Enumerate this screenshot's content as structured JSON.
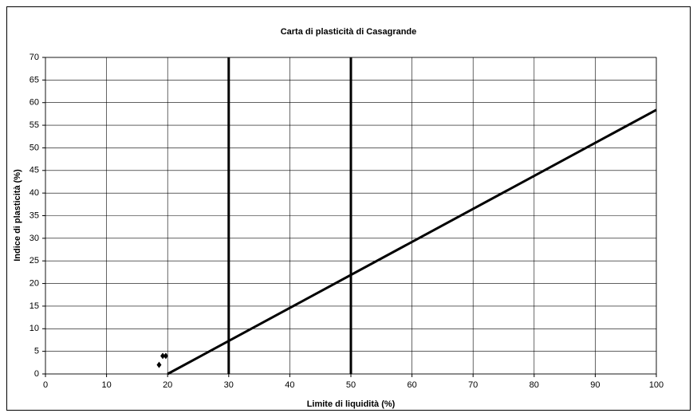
{
  "chart_data": {
    "type": "scatter",
    "title": "Carta di plasticità di Casagrande",
    "x_label": "Limite di liquidità (%)",
    "y_label": "Indice di plasticità (%)",
    "xlim": [
      0,
      100
    ],
    "ylim": [
      0,
      70
    ],
    "xticks": [
      0,
      10,
      20,
      30,
      40,
      50,
      60,
      70,
      80,
      90,
      100
    ],
    "yticks": [
      0,
      5,
      10,
      15,
      20,
      25,
      30,
      35,
      40,
      45,
      50,
      55,
      60,
      65,
      70
    ],
    "grid": true,
    "series": [
      {
        "mode": "markers",
        "color": "#000000",
        "x": [
          18.6,
          19.2,
          19.7
        ],
        "values": [
          2,
          4,
          4
        ]
      },
      {
        "mode": "line",
        "color": "#000000",
        "x": [
          20,
          100
        ],
        "values": [
          0,
          58.4
        ]
      },
      {
        "mode": "line",
        "color": "#000000",
        "x": [
          30,
          30
        ],
        "values": [
          0,
          70
        ]
      },
      {
        "mode": "line",
        "color": "#000000",
        "x": [
          50,
          50
        ],
        "values": [
          0,
          70
        ]
      }
    ]
  }
}
